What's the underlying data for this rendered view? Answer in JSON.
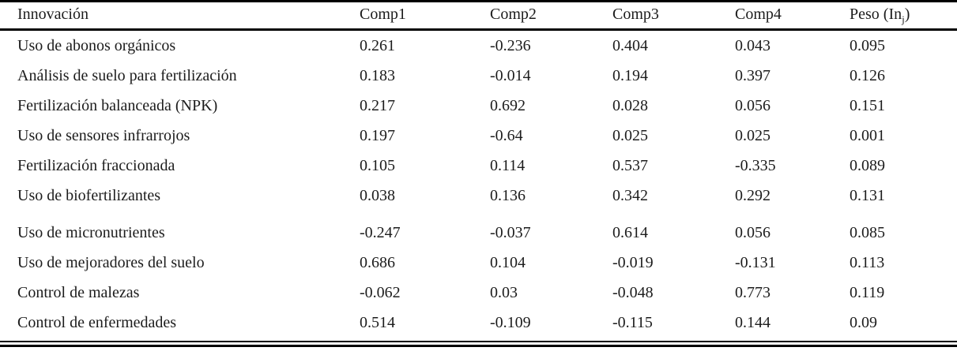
{
  "colors": {
    "background": "#ffffff",
    "text": "#1c1c1c",
    "rule": "#000000"
  },
  "table": {
    "header": {
      "innovation": "Innovación",
      "comp1": "Comp1",
      "comp2": "Comp2",
      "comp3": "Comp3",
      "comp4": "Comp4",
      "peso": {
        "prefix": "Peso (In",
        "subscript": "j",
        "suffix": ")"
      }
    },
    "rows": [
      {
        "innovation": "Uso de abonos orgánicos",
        "comp1": "0.261",
        "comp2": "-0.236",
        "comp3": "0.404",
        "comp4": "0.043",
        "peso": "0.095"
      },
      {
        "innovation": "Análisis de suelo para fertilización",
        "comp1": "0.183",
        "comp2": "-0.014",
        "comp3": "0.194",
        "comp4": "0.397",
        "peso": "0.126"
      },
      {
        "innovation": "Fertilización balanceada (NPK)",
        "comp1": "0.217",
        "comp2": "0.692",
        "comp3": "0.028",
        "comp4": "0.056",
        "peso": "0.151"
      },
      {
        "innovation": "Uso de sensores infrarrojos",
        "comp1": "0.197",
        "comp2": "-0.64",
        "comp3": "0.025",
        "comp4": "0.025",
        "peso": "0.001"
      },
      {
        "innovation": "Fertilización fraccionada",
        "comp1": "0.105",
        "comp2": "0.114",
        "comp3": "0.537",
        "comp4": "-0.335",
        "peso": "0.089"
      },
      {
        "innovation": "Uso de biofertilizantes",
        "comp1": "0.038",
        "comp2": "0.136",
        "comp3": "0.342",
        "comp4": "0.292",
        "peso": "0.131"
      },
      {
        "innovation": "Uso de micronutrientes",
        "comp1": "-0.247",
        "comp2": "-0.037",
        "comp3": "0.614",
        "comp4": "0.056",
        "peso": "0.085"
      },
      {
        "innovation": "Uso de mejoradores del suelo",
        "comp1": "0.686",
        "comp2": "0.104",
        "comp3": "-0.019",
        "comp4": "-0.131",
        "peso": "0.113"
      },
      {
        "innovation": "Control de malezas",
        "comp1": "-0.062",
        "comp2": "0.03",
        "comp3": "-0.048",
        "comp4": "0.773",
        "peso": "0.119"
      },
      {
        "innovation": "Control de enfermedades",
        "comp1": "0.514",
        "comp2": "-0.109",
        "comp3": "-0.115",
        "comp4": "0.144",
        "peso": "0.09"
      }
    ]
  }
}
